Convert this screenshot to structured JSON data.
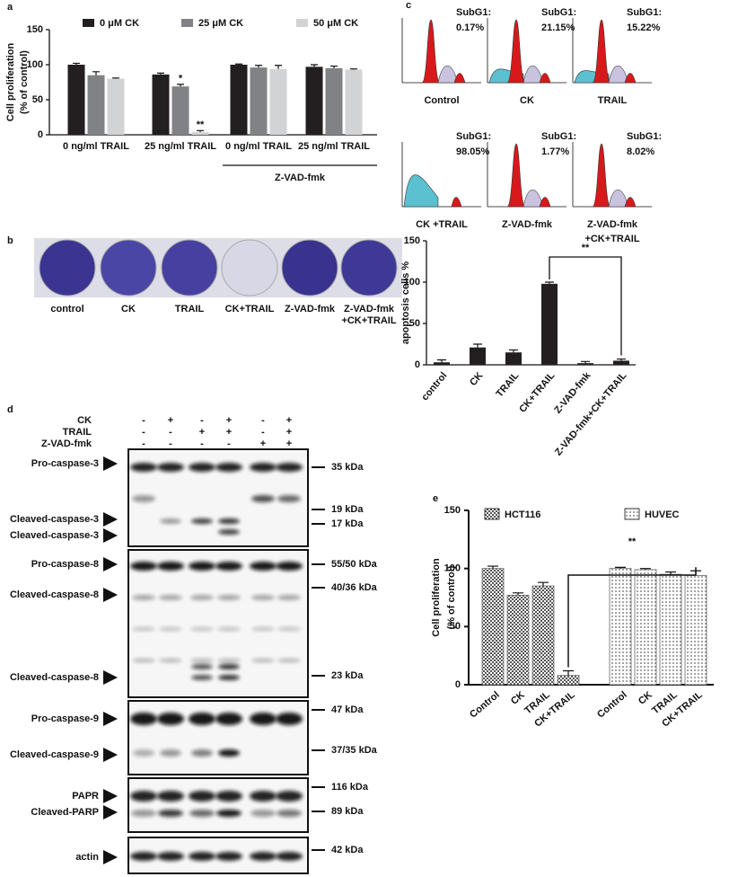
{
  "panel_labels": [
    "a",
    "b",
    "c",
    "d",
    "e"
  ],
  "chart_data": [
    {
      "type": "bar",
      "ylabel": [
        "Cell proliferation",
        "(% of control)"
      ],
      "categories": [
        "0 ng/ml TRAIL",
        "25  ng/ml TRAIL",
        "0 ng/ml TRAIL",
        "25  ng/ml TRAIL"
      ],
      "series": [
        {
          "name": "0  μM CK",
          "color": "#231f20",
          "values": [
            100,
            86,
            100,
            97
          ],
          "errors": [
            2,
            2,
            1,
            3
          ]
        },
        {
          "name": "25  μM CK",
          "color": "#808285",
          "values": [
            85,
            69,
            96,
            95
          ],
          "errors": [
            5,
            3,
            3,
            3
          ]
        },
        {
          "name": "50  μM CK",
          "color": "#d1d3d4",
          "values": [
            80,
            4,
            94,
            93
          ],
          "errors": [
            1,
            2,
            5,
            1
          ]
        }
      ],
      "ylim": [
        0,
        150
      ],
      "yticks": [
        0,
        50,
        100,
        150
      ],
      "annotations": [
        {
          "text": "*",
          "category": 1,
          "series": 1
        },
        {
          "text": "**",
          "category": 1,
          "series": 2
        }
      ],
      "group_label": "Z-VAD-fmk"
    },
    {
      "type": "bar",
      "ylabel": "apoptosis cells %",
      "categories": [
        "control",
        "CK",
        "TRAIL",
        "CK+TRAIL",
        "Z-VAD-fmk",
        "Z-VAD-fmk+CK+TRAIL"
      ],
      "values": [
        3,
        21,
        15,
        98,
        2,
        5
      ],
      "errors": [
        3,
        4,
        3,
        2,
        2,
        2
      ],
      "color": "#231f20",
      "ylim": [
        0,
        150
      ],
      "yticks": [
        0,
        50,
        100,
        150
      ],
      "annotation": "**"
    },
    {
      "type": "bar",
      "ylabel": [
        "Cell proliferation",
        "(% of control)"
      ],
      "series": [
        {
          "name": "HCT116",
          "pattern": "checker",
          "categories": [
            "Control",
            "CK",
            "TRAIL",
            "CK+TRAIL"
          ],
          "values": [
            100,
            77,
            85,
            8
          ],
          "errors": [
            2,
            2,
            3,
            4
          ]
        },
        {
          "name": "HUVEC",
          "pattern": "dots",
          "categories": [
            "Control",
            "CK",
            "TRAIL",
            "CK+TRAIL"
          ],
          "values": [
            100,
            99,
            95,
            94
          ],
          "errors": [
            1,
            1,
            2,
            4
          ]
        }
      ],
      "ylim": [
        0,
        150
      ],
      "yticks": [
        0,
        50,
        100,
        150
      ],
      "annotation": "**"
    }
  ],
  "flow": [
    {
      "label": "SubG1:",
      "value": "0.17%",
      "name": [
        "Control"
      ]
    },
    {
      "label": "SubG1:",
      "value": "21.15%",
      "name": [
        "CK"
      ]
    },
    {
      "label": "SubG1:",
      "value": "15.22%",
      "name": [
        "TRAIL"
      ]
    },
    {
      "label": "SubG1:",
      "value": "98.05%",
      "name": [
        "CK +TRAIL"
      ]
    },
    {
      "label": "SubG1:",
      "value": "1.77%",
      "name": [
        "Z-VAD-fmk"
      ]
    },
    {
      "label": "SubG1:",
      "value": "8.02%",
      "name": [
        "Z-VAD-fmk",
        "+CK+TRAIL"
      ]
    }
  ],
  "plates": [
    [
      "control"
    ],
    [
      "CK"
    ],
    [
      "TRAIL"
    ],
    [
      "CK+TRAIL"
    ],
    [
      "Z-VAD-fmk"
    ],
    [
      "Z-VAD-fmk",
      "+CK+TRAIL"
    ]
  ],
  "blot": {
    "treatments": [
      {
        "name": "CK",
        "signs": [
          "-",
          "+",
          "-",
          "+",
          "-",
          "+"
        ]
      },
      {
        "name": "TRAIL",
        "signs": [
          "-",
          "-",
          "+",
          "+",
          "-",
          "+"
        ]
      },
      {
        "name": "Z-VAD-fmk",
        "signs": [
          "-",
          "-",
          "-",
          "-",
          "+",
          "+"
        ]
      }
    ],
    "bands": [
      "Pro-caspase-3",
      "Cleaved-caspase-3",
      "Cleaved-caspase-3",
      "Pro-caspase-8",
      "Cleaved-caspase-8",
      "Cleaved-caspase-8",
      "Pro-caspase-9",
      "Cleaved-caspase-9",
      "PAPR",
      "Cleaved-PARP",
      "actin"
    ],
    "markers": [
      "35 kDa",
      "19 kDa",
      "17 kDa",
      "55/50 kDa",
      "40/36 kDa",
      "23 kDa",
      "47 kDa",
      "37/35 kDa",
      "116 kDa",
      "89 kDa",
      "42 kDa"
    ]
  }
}
